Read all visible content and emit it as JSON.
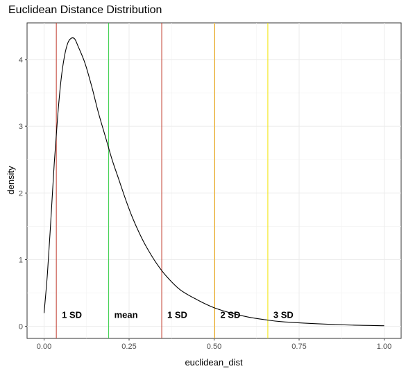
{
  "chart_data": {
    "type": "line",
    "title": "Euclidean Distance Distribution",
    "xlabel": "euclidean_dist",
    "ylabel": "density",
    "xlim": [
      -0.05,
      1.05
    ],
    "ylim": [
      -0.18,
      4.55
    ],
    "xticks": [
      0.0,
      0.25,
      0.5,
      0.75,
      1.0
    ],
    "xtick_labels": [
      "0.00",
      "0.25",
      "0.50",
      "0.75",
      "1.00"
    ],
    "yticks": [
      0,
      1,
      2,
      3,
      4
    ],
    "ytick_labels": [
      "0",
      "1",
      "2",
      "3",
      "4"
    ],
    "grid": true,
    "series": [
      {
        "type": "density",
        "color": "#000000",
        "x": [
          0.0,
          0.01,
          0.02,
          0.03,
          0.04,
          0.05,
          0.06,
          0.07,
          0.08,
          0.09,
          0.1,
          0.12,
          0.14,
          0.16,
          0.18,
          0.2,
          0.22,
          0.24,
          0.26,
          0.28,
          0.3,
          0.33,
          0.36,
          0.4,
          0.45,
          0.5,
          0.55,
          0.6,
          0.65,
          0.7,
          0.8,
          0.9,
          1.0
        ],
        "y": [
          0.2,
          0.8,
          1.6,
          2.45,
          3.15,
          3.7,
          4.05,
          4.25,
          4.32,
          4.31,
          4.2,
          3.95,
          3.6,
          3.2,
          2.85,
          2.5,
          2.2,
          1.9,
          1.63,
          1.4,
          1.2,
          0.95,
          0.75,
          0.55,
          0.4,
          0.28,
          0.2,
          0.14,
          0.1,
          0.07,
          0.04,
          0.02,
          0.01
        ]
      }
    ],
    "reference_lines": [
      {
        "x": 0.036,
        "color": "#c0392b",
        "label": "1 SD"
      },
      {
        "x": 0.19,
        "color": "#2ecc40",
        "label": "mean"
      },
      {
        "x": 0.346,
        "color": "#c0392b",
        "label": "1 SD"
      },
      {
        "x": 0.502,
        "color": "#f0a500",
        "label": "2 SD"
      },
      {
        "x": 0.658,
        "color": "#f2e600",
        "label": "3 SD"
      }
    ],
    "reference_label_y": 0.17
  }
}
